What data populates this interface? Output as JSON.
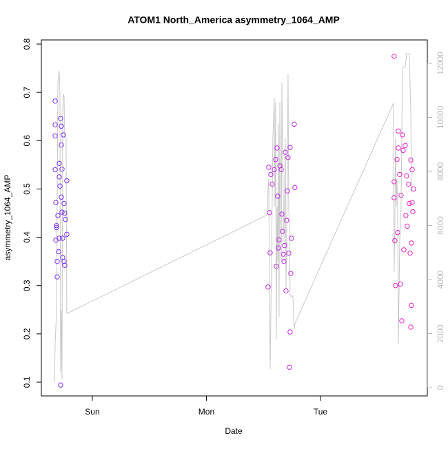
{
  "chart_data": {
    "type": "scatter",
    "title": "ATOM1 North_America asymmetry_1064_AMP",
    "xlabel": "Date",
    "ylabel": "asymmetry_1064_AMP",
    "xlim": [
      -0.447,
      2.937
    ],
    "xticks": [
      {
        "value": 0,
        "label": "Sun"
      },
      {
        "value": 1,
        "label": "Mon"
      },
      {
        "value": 2,
        "label": "Tue"
      }
    ],
    "ylim": [
      0.0715,
      0.8086
    ],
    "yticks": [
      0.1,
      0.2,
      0.3,
      0.4,
      0.5,
      0.6,
      0.7,
      0.8
    ],
    "y2lim": [
      -306,
      12866
    ],
    "y2ticks": [
      0,
      2000,
      4000,
      6000,
      8000,
      10000,
      12000
    ],
    "series": [
      {
        "type": "scatter",
        "color": "#7a30f5",
        "x": [
          -0.326,
          -0.326,
          -0.326,
          -0.326,
          -0.32,
          -0.314,
          -0.314,
          -0.32,
          -0.308,
          -0.308,
          -0.302,
          -0.296,
          -0.29,
          -0.29,
          -0.284,
          -0.278,
          -0.272,
          -0.272,
          -0.266,
          -0.272,
          -0.266,
          -0.26,
          -0.26,
          -0.254,
          -0.248,
          -0.242,
          -0.236,
          -0.242,
          -0.224,
          -0.224,
          -0.278,
          -0.29,
          -0.248
        ],
        "values": [
          0.682,
          0.633,
          0.61,
          0.54,
          0.472,
          0.424,
          0.42,
          0.394,
          0.35,
          0.318,
          0.445,
          0.37,
          0.525,
          0.553,
          0.506,
          0.646,
          0.63,
          0.591,
          0.541,
          0.483,
          0.452,
          0.398,
          0.358,
          0.612,
          0.47,
          0.45,
          0.437,
          0.342,
          0.517,
          0.406,
          0.094,
          0.398,
          0.35
        ]
      },
      {
        "type": "scatter",
        "color": "#c424ea",
        "x": [
          1.541,
          1.547,
          1.553,
          1.559,
          1.565,
          1.577,
          1.595,
          1.607,
          1.613,
          1.619,
          1.625,
          1.631,
          1.637,
          1.644,
          1.656,
          1.662,
          1.668,
          1.674,
          1.68,
          1.686,
          1.692,
          1.698,
          1.704,
          1.71,
          1.716,
          1.722,
          1.728,
          1.734,
          1.734,
          1.74,
          1.746,
          1.77,
          1.776
        ],
        "values": [
          0.297,
          0.545,
          0.451,
          0.368,
          0.53,
          0.51,
          0.54,
          0.561,
          0.34,
          0.585,
          0.485,
          0.378,
          0.395,
          0.548,
          0.54,
          0.448,
          0.412,
          0.365,
          0.35,
          0.383,
          0.576,
          0.289,
          0.435,
          0.496,
          0.565,
          0.367,
          0.131,
          0.204,
          0.586,
          0.325,
          0.398,
          0.634,
          0.503
        ]
      },
      {
        "type": "scatter",
        "color": "#e822c8",
        "x": [
          2.646,
          2.646,
          2.646,
          2.652,
          2.658,
          2.671,
          2.677,
          2.683,
          2.683,
          2.695,
          2.701,
          2.707,
          2.713,
          2.719,
          2.725,
          2.731,
          2.743,
          2.749,
          2.755,
          2.761,
          2.773,
          2.779,
          2.786,
          2.792,
          2.792,
          2.798,
          2.798,
          2.804,
          2.804,
          2.81,
          2.816
        ],
        "values": [
          0.775,
          0.515,
          0.482,
          0.393,
          0.3,
          0.561,
          0.41,
          0.62,
          0.585,
          0.53,
          0.303,
          0.487,
          0.227,
          0.612,
          0.58,
          0.374,
          0.59,
          0.445,
          0.527,
          0.423,
          0.51,
          0.47,
          0.367,
          0.214,
          0.56,
          0.388,
          0.259,
          0.54,
          0.472,
          0.453,
          0.5
        ]
      },
      {
        "type": "line",
        "axis": "y2",
        "color": "#c8c8c8",
        "x": [
          -0.332,
          -0.326,
          -0.314,
          -0.302,
          -0.29,
          -0.284,
          -0.278,
          -0.272,
          -0.266,
          -0.26,
          -0.254,
          -0.248,
          -0.242,
          -0.23,
          -0.224,
          -0.218,
          1.535,
          1.541,
          1.547,
          1.553,
          1.559,
          1.571,
          1.583,
          1.595,
          1.601,
          1.607,
          1.613,
          1.619,
          1.625,
          1.631,
          1.637,
          1.644,
          1.65,
          1.656,
          1.662,
          1.668,
          1.68,
          1.692,
          1.698,
          1.71,
          1.716,
          1.722,
          1.728,
          1.734,
          1.746,
          1.752,
          1.758,
          1.77,
          1.776,
          2.64,
          2.646,
          2.652,
          2.658,
          2.665,
          2.671,
          2.677,
          2.683,
          2.695,
          2.707,
          2.719,
          2.731,
          2.743,
          2.755,
          2.767,
          2.779,
          2.792,
          2.798,
          2.804
        ],
        "values": [
          204,
          1605,
          2879,
          11287,
          11720,
          10777,
          586,
          2879,
          331,
          10268,
          10854,
          10777,
          9248,
          9248,
          2752,
          2752,
          6395,
          7465,
          7720,
          3643,
          688,
          4662,
          9248,
          10726,
          6701,
          10573,
          1758,
          6701,
          4662,
          9758,
          2624,
          10573,
          6701,
          4662,
          11287,
          8739,
          5427,
          9248,
          3643,
          7975,
          11592,
          6701,
          5936,
          3389,
          3389,
          3389,
          3389,
          2166,
          2369,
          10522,
          4280,
          5936,
          9248,
          6701,
          7720,
          6701,
          1605,
          5427,
          6701,
          11796,
          11873,
          11873,
          12357,
          12357,
          12357,
          10268,
          7210,
          7465
        ]
      }
    ]
  }
}
